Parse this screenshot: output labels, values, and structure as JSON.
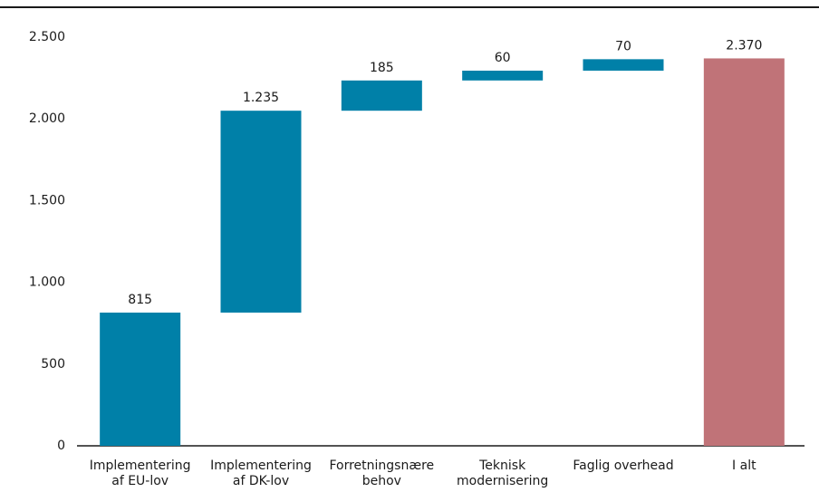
{
  "chart_data": {
    "type": "waterfall",
    "categories": [
      [
        "Implementering",
        "af EU-lov"
      ],
      [
        "Implementering",
        "af DK-lov"
      ],
      [
        "Forretningsnære",
        "behov"
      ],
      [
        "Teknisk",
        "modernisering"
      ],
      [
        "Faglig overhead"
      ],
      [
        "I alt"
      ]
    ],
    "values": [
      815,
      1235,
      185,
      60,
      70,
      2370
    ],
    "value_labels": [
      "815",
      "1.235",
      "185",
      "60",
      "70",
      "2.370"
    ],
    "color": "#0080a8",
    "total_color": "#c07378",
    "ylim": [
      0,
      2500
    ],
    "yticks": [
      0,
      500,
      {
        "value": 1000,
        "label": "1.000"
      },
      {
        "value": 1500,
        "label": "1.500"
      },
      {
        "value": 2000,
        "label": "2.000"
      },
      {
        "value": 2500,
        "label": "2.500"
      }
    ],
    "grid": false
  }
}
